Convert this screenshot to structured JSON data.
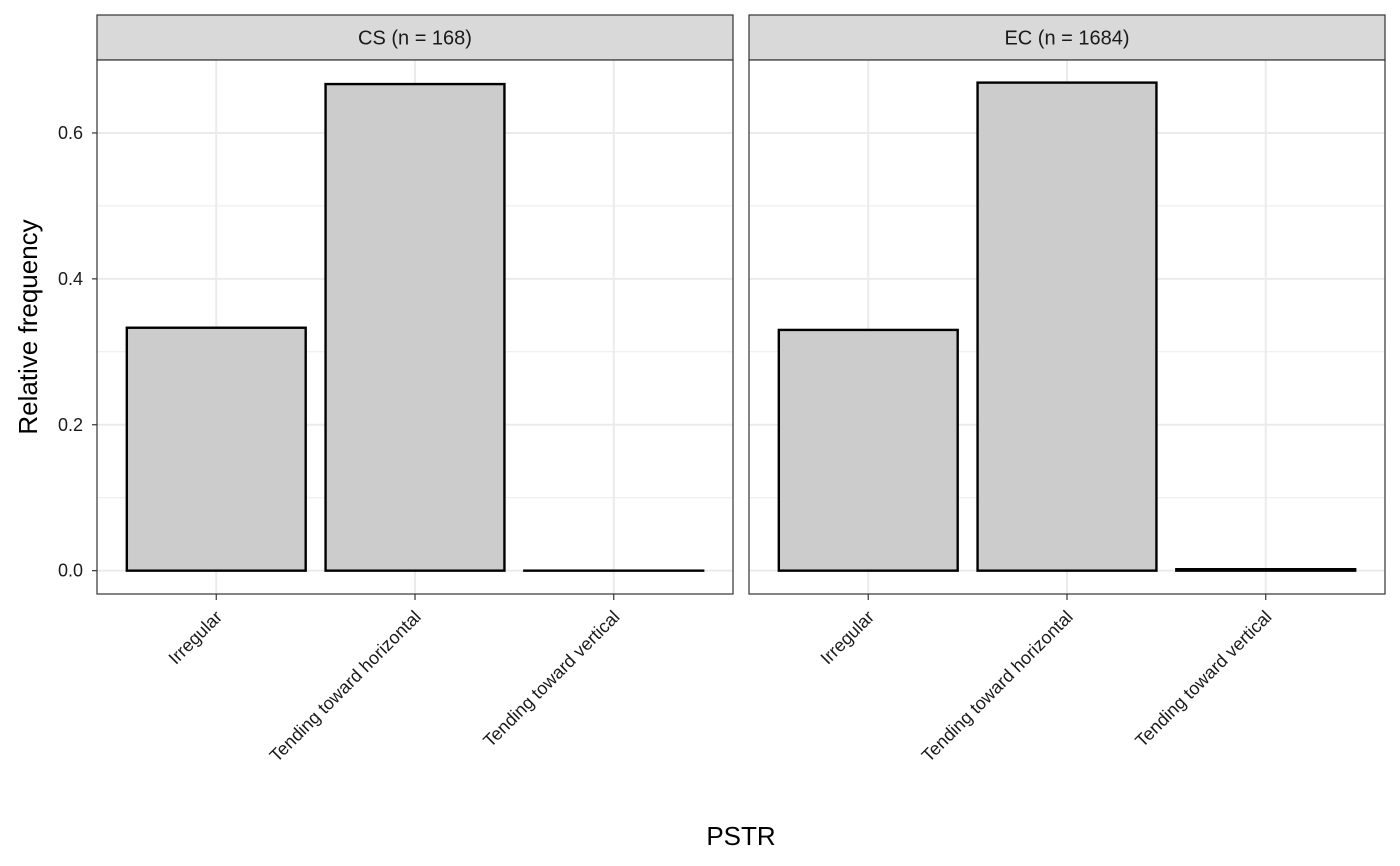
{
  "chart_data": {
    "type": "bar",
    "xlabel": "PSTR",
    "ylabel": "Relative frequency",
    "ylim": [
      -0.032,
      0.7
    ],
    "yticks": [
      0.0,
      0.2,
      0.4,
      0.6
    ],
    "ytick_labels": [
      "0.0",
      "0.2",
      "0.4",
      "0.6"
    ],
    "categories": [
      "Irregular",
      "Tending toward horizontal",
      "Tending toward vertical"
    ],
    "grid": true,
    "panels": [
      {
        "title": "CS (n = 168)",
        "values": [
          0.333,
          0.667,
          0.0
        ]
      },
      {
        "title": "EC (n = 1684)",
        "values": [
          0.33,
          0.669,
          0.002
        ]
      }
    ],
    "colors": {
      "bar_fill": "#cccccc",
      "bar_stroke": "#000000",
      "strip_fill": "#d9d9d9",
      "grid": "#ebebeb",
      "panel_border": "#333333"
    }
  }
}
